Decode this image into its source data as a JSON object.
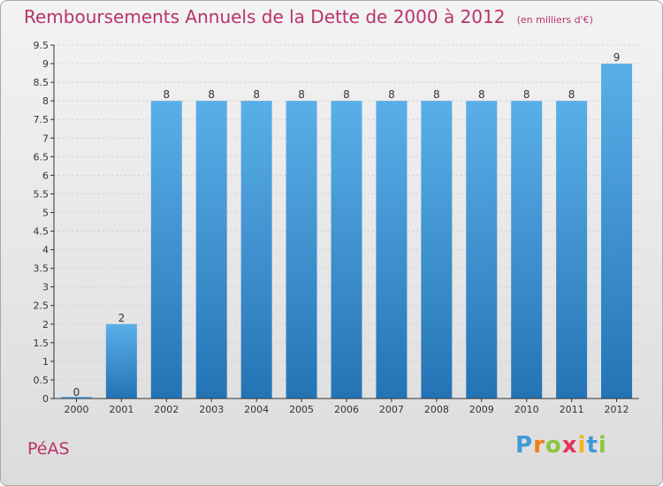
{
  "title": "Remboursements Annuels de la Dette de 2000 à 2012",
  "subtitle": "(en milliers d'€)",
  "commune": "PéAS",
  "brand": {
    "text": "Proxiti",
    "letters": [
      "P",
      "r",
      "o",
      "x",
      "i",
      "t",
      "i"
    ],
    "letter_colors": [
      "#3d9ad6",
      "#f07f1a",
      "#8cc63f",
      "#e2365c",
      "#f4b41a",
      "#3d9ad6",
      "#8cc63f"
    ]
  },
  "colors": {
    "title": "#b8336a",
    "bar_top": "#5aafe8",
    "bar_bottom": "#2474b5",
    "grid": "#cfcfcf",
    "axis": "#333333"
  },
  "chart_data": {
    "type": "bar",
    "categories": [
      "2000",
      "2001",
      "2002",
      "2003",
      "2004",
      "2005",
      "2006",
      "2007",
      "2008",
      "2009",
      "2010",
      "2011",
      "2012"
    ],
    "values": [
      0,
      2,
      8,
      8,
      8,
      8,
      8,
      8,
      8,
      8,
      8,
      8,
      9
    ],
    "data_labels": [
      "0",
      "2",
      "8",
      "8",
      "8",
      "8",
      "8",
      "8",
      "8",
      "8",
      "8",
      "8",
      "9"
    ],
    "title": "Remboursements Annuels de la Dette de 2000 à 2012",
    "xlabel": "",
    "ylabel": "",
    "ylim": [
      0,
      9.5
    ],
    "yticks": [
      "0",
      "0.5",
      "1",
      "1.5",
      "2",
      "2.5",
      "3",
      "3.5",
      "4",
      "4.5",
      "5",
      "5.5",
      "6",
      "6.5",
      "7",
      "7.5",
      "8",
      "8.5",
      "9",
      "9.5"
    ],
    "ytick_values": [
      0,
      0.5,
      1,
      1.5,
      2,
      2.5,
      3,
      3.5,
      4,
      4.5,
      5,
      5.5,
      6,
      6.5,
      7,
      7.5,
      8,
      8.5,
      9,
      9.5
    ],
    "grid": true
  }
}
